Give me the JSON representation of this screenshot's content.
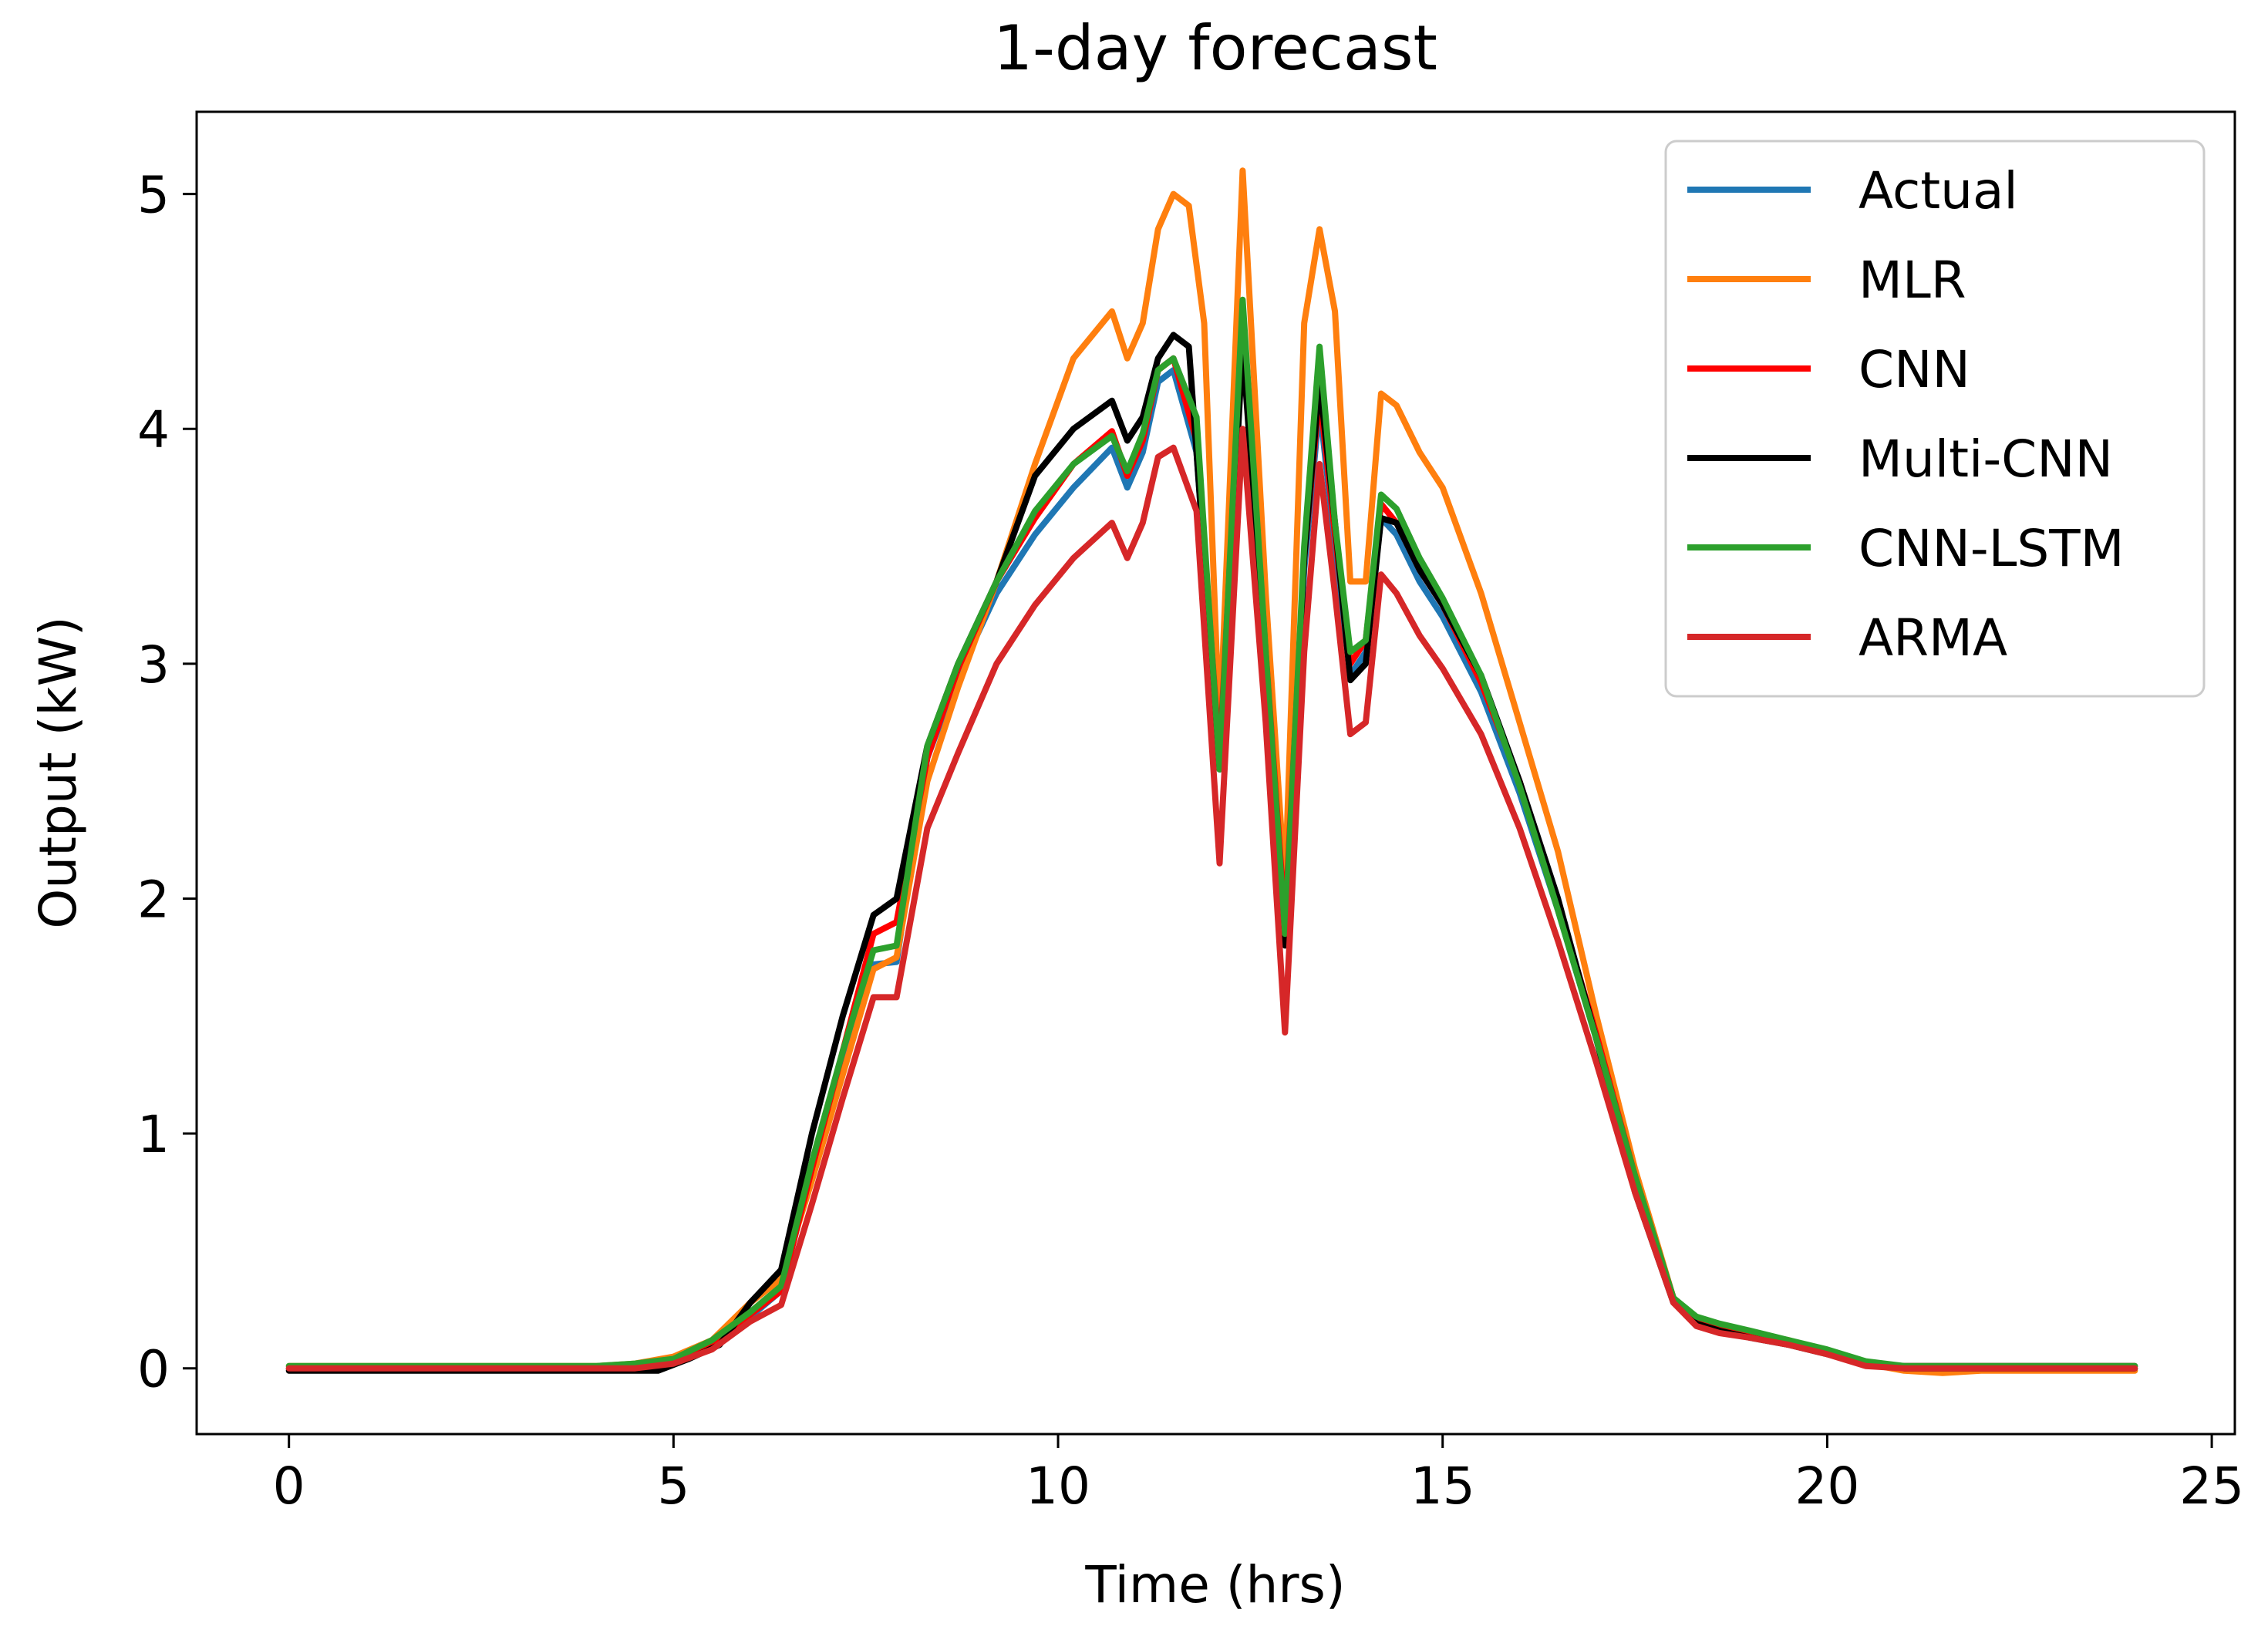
{
  "chart_data": {
    "type": "line",
    "title": "1-day forecast",
    "xlabel": "Time (hrs)",
    "ylabel": "Output (kW)",
    "xlim": [
      -1.2,
      25.3
    ],
    "ylim": [
      -0.28,
      5.35
    ],
    "xticks": [
      0,
      5,
      10,
      15,
      20,
      25
    ],
    "yticks": [
      0,
      1,
      2,
      3,
      4,
      5
    ],
    "grid": false,
    "legend_position": "top-right",
    "series": [
      {
        "name": "Actual",
        "color": "#1f77b4",
        "x": [
          0,
          1,
          2,
          3,
          4,
          4.5,
          5,
          5.5,
          6,
          6.4,
          6.8,
          7.2,
          7.6,
          7.9,
          8.3,
          8.7,
          9.2,
          9.7,
          10.2,
          10.7,
          10.9,
          11.1,
          11.3,
          11.5,
          11.8,
          12.1,
          12.4,
          12.7,
          12.95,
          13.2,
          13.4,
          13.6,
          13.8,
          14.0,
          14.2,
          14.4,
          14.7,
          15.0,
          15.5,
          16.0,
          16.5,
          17.0,
          17.5,
          18.0,
          18.3,
          18.6,
          19.0,
          19.5,
          20.0,
          20.5,
          21.0,
          21.5,
          22.0,
          22.5,
          23.0,
          23.5,
          24.0
        ],
        "y": [
          0,
          0,
          0,
          0,
          0,
          0.01,
          0.03,
          0.1,
          0.22,
          0.33,
          0.85,
          1.3,
          1.72,
          1.73,
          2.6,
          2.95,
          3.3,
          3.55,
          3.75,
          3.92,
          3.75,
          3.9,
          4.2,
          4.25,
          3.9,
          2.55,
          4.4,
          3.0,
          1.85,
          3.4,
          4.1,
          3.5,
          2.95,
          3.05,
          3.62,
          3.55,
          3.35,
          3.2,
          2.88,
          2.45,
          1.95,
          1.4,
          0.8,
          0.3,
          0.2,
          0.17,
          0.14,
          0.11,
          0.07,
          0.02,
          0.01,
          0.01,
          0.01,
          0.01,
          0.01,
          0.01,
          0.01
        ]
      },
      {
        "name": "MLR",
        "color": "#ff7f0e",
        "x": [
          0,
          1,
          2,
          3,
          4,
          4.5,
          5,
          5.5,
          6,
          6.4,
          6.8,
          7.2,
          7.6,
          7.9,
          8.3,
          8.7,
          9.2,
          9.7,
          10.2,
          10.7,
          10.9,
          11.1,
          11.3,
          11.5,
          11.7,
          11.9,
          12.1,
          12.4,
          12.7,
          12.95,
          13.2,
          13.4,
          13.6,
          13.8,
          14.0,
          14.2,
          14.4,
          14.7,
          15.0,
          15.5,
          16.0,
          16.5,
          17.0,
          17.5,
          18.0,
          18.3,
          18.6,
          19.0,
          19.5,
          20.0,
          20.5,
          21.0,
          21.5,
          22.0,
          22.5,
          23.0,
          23.5,
          24.0
        ],
        "y": [
          0.01,
          0.01,
          0.01,
          0.01,
          0.01,
          0.02,
          0.05,
          0.12,
          0.28,
          0.38,
          0.8,
          1.25,
          1.7,
          1.75,
          2.5,
          2.9,
          3.35,
          3.85,
          4.3,
          4.5,
          4.3,
          4.45,
          4.85,
          5.0,
          4.95,
          4.45,
          2.7,
          5.1,
          3.3,
          2.05,
          4.45,
          4.85,
          4.5,
          3.35,
          3.35,
          4.15,
          4.1,
          3.9,
          3.75,
          3.3,
          2.75,
          2.2,
          1.5,
          0.85,
          0.3,
          0.2,
          0.18,
          0.15,
          0.12,
          0.07,
          0.02,
          -0.01,
          -0.02,
          -0.01,
          -0.01,
          -0.01,
          -0.01,
          -0.01
        ]
      },
      {
        "name": "CNN",
        "color": "#ff0000",
        "x": [
          0,
          1,
          2,
          3,
          4,
          4.5,
          5,
          5.5,
          6,
          6.4,
          6.8,
          7.2,
          7.6,
          7.9,
          8.3,
          8.7,
          9.2,
          9.7,
          10.2,
          10.7,
          10.9,
          11.1,
          11.3,
          11.5,
          11.8,
          12.1,
          12.4,
          12.7,
          12.95,
          13.2,
          13.4,
          13.6,
          13.8,
          14.0,
          14.2,
          14.4,
          14.7,
          15.0,
          15.5,
          16.0,
          16.5,
          17.0,
          17.5,
          18.0,
          18.3,
          18.6,
          19.0,
          19.5,
          20.0,
          20.5,
          21.0,
          21.5,
          22.0,
          22.5,
          23.0,
          23.5,
          24.0
        ],
        "y": [
          0,
          0,
          0,
          0,
          0,
          0.01,
          0.03,
          0.1,
          0.23,
          0.33,
          0.85,
          1.35,
          1.85,
          1.9,
          2.6,
          2.98,
          3.35,
          3.62,
          3.85,
          3.99,
          3.8,
          3.95,
          4.25,
          4.3,
          3.95,
          2.6,
          4.45,
          3.05,
          1.9,
          3.45,
          4.15,
          3.55,
          3.0,
          3.1,
          3.68,
          3.6,
          3.4,
          3.25,
          2.92,
          2.5,
          1.98,
          1.42,
          0.82,
          0.3,
          0.2,
          0.17,
          0.14,
          0.11,
          0.07,
          0.02,
          0.01,
          0.01,
          0.01,
          0.01,
          0.01,
          0.01,
          0.01
        ]
      },
      {
        "name": "Multi-CNN",
        "color": "#000000",
        "x": [
          0,
          1,
          2,
          3,
          4,
          4.5,
          4.8,
          5.2,
          5.6,
          6,
          6.4,
          6.8,
          7.2,
          7.6,
          7.9,
          8.3,
          8.7,
          9.2,
          9.7,
          10.2,
          10.7,
          10.9,
          11.1,
          11.3,
          11.5,
          11.7,
          12.1,
          12.4,
          12.7,
          12.95,
          13.2,
          13.4,
          13.6,
          13.8,
          14.0,
          14.2,
          14.4,
          14.7,
          15.0,
          15.5,
          16.0,
          16.5,
          17.0,
          17.5,
          18.0,
          18.3,
          18.6,
          19.0,
          19.5,
          20.0,
          20.5,
          21.0,
          21.5,
          22.0,
          22.5,
          23.0,
          23.5,
          24.0
        ],
        "y": [
          -0.01,
          -0.01,
          -0.01,
          -0.01,
          -0.01,
          -0.01,
          -0.01,
          0.04,
          0.1,
          0.28,
          0.42,
          1.0,
          1.5,
          1.93,
          2.0,
          2.65,
          3.0,
          3.35,
          3.8,
          4.0,
          4.12,
          3.95,
          4.05,
          4.3,
          4.4,
          4.35,
          2.55,
          4.35,
          3.0,
          1.8,
          3.45,
          4.2,
          3.6,
          2.93,
          3.0,
          3.62,
          3.6,
          3.4,
          3.25,
          2.95,
          2.5,
          2.0,
          1.4,
          0.75,
          0.28,
          0.19,
          0.16,
          0.13,
          0.1,
          0.06,
          0.02,
          0,
          0,
          0,
          0,
          0,
          0,
          0
        ]
      },
      {
        "name": "CNN-LSTM",
        "color": "#2ca02c",
        "x": [
          0,
          1,
          2,
          3,
          4,
          4.5,
          5,
          5.5,
          6,
          6.4,
          6.8,
          7.2,
          7.6,
          7.9,
          8.3,
          8.7,
          9.2,
          9.7,
          10.2,
          10.7,
          10.9,
          11.1,
          11.3,
          11.5,
          11.8,
          12.1,
          12.4,
          12.7,
          12.95,
          13.2,
          13.4,
          13.6,
          13.8,
          14.0,
          14.2,
          14.4,
          14.7,
          15.0,
          15.5,
          16.0,
          16.5,
          17.0,
          17.5,
          18.0,
          18.3,
          18.6,
          19.0,
          19.5,
          20.0,
          20.5,
          21.0,
          21.5,
          22.0,
          22.5,
          23.0,
          23.5,
          24.0
        ],
        "y": [
          0.01,
          0.01,
          0.01,
          0.01,
          0.01,
          0.02,
          0.04,
          0.12,
          0.24,
          0.35,
          0.88,
          1.35,
          1.78,
          1.8,
          2.65,
          3.0,
          3.35,
          3.65,
          3.85,
          3.97,
          3.82,
          3.98,
          4.25,
          4.3,
          4.05,
          2.55,
          4.55,
          3.05,
          1.85,
          3.5,
          4.35,
          3.6,
          3.05,
          3.1,
          3.72,
          3.66,
          3.45,
          3.28,
          2.95,
          2.48,
          1.95,
          1.4,
          0.82,
          0.3,
          0.22,
          0.19,
          0.16,
          0.12,
          0.08,
          0.03,
          0.01,
          0.01,
          0.01,
          0.01,
          0.01,
          0.01,
          0.01
        ]
      },
      {
        "name": "ARMA",
        "color": "#d62728",
        "x": [
          0,
          1,
          2,
          3,
          4,
          4.5,
          5,
          5.5,
          6,
          6.4,
          6.8,
          7.2,
          7.6,
          7.9,
          8.3,
          8.7,
          9.2,
          9.7,
          10.2,
          10.7,
          10.9,
          11.1,
          11.3,
          11.5,
          11.8,
          12.1,
          12.4,
          12.7,
          12.95,
          13.2,
          13.4,
          13.6,
          13.8,
          14.0,
          14.2,
          14.4,
          14.7,
          15.0,
          15.5,
          16.0,
          16.5,
          17.0,
          17.5,
          18.0,
          18.3,
          18.6,
          19.0,
          19.5,
          20.0,
          20.5,
          21.0,
          21.5,
          22.0,
          22.5,
          23.0,
          23.5,
          24.0
        ],
        "y": [
          0,
          0,
          0,
          0,
          0,
          0,
          0.02,
          0.08,
          0.2,
          0.27,
          0.7,
          1.15,
          1.58,
          1.58,
          2.3,
          2.62,
          3.0,
          3.25,
          3.45,
          3.6,
          3.45,
          3.6,
          3.88,
          3.92,
          3.65,
          2.15,
          4.0,
          2.75,
          1.43,
          3.05,
          3.85,
          3.3,
          2.7,
          2.75,
          3.38,
          3.3,
          3.12,
          2.98,
          2.7,
          2.3,
          1.82,
          1.3,
          0.75,
          0.28,
          0.18,
          0.15,
          0.13,
          0.1,
          0.06,
          0.01,
          0,
          0,
          0,
          0,
          0,
          0,
          0
        ]
      }
    ]
  }
}
